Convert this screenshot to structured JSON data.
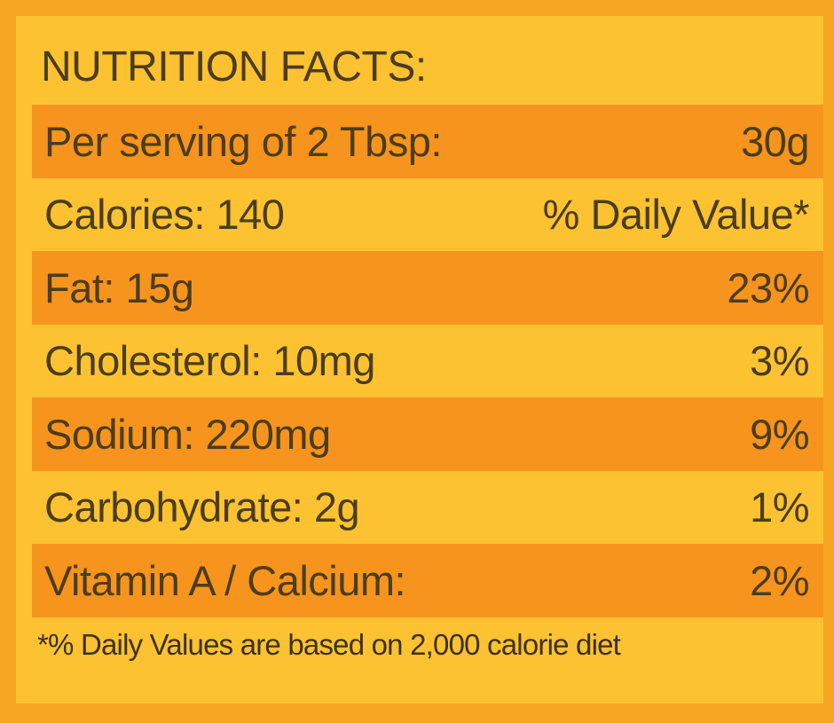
{
  "title": "NUTRITION FACTS:",
  "rows": [
    [
      "Per serving of 2 Tbsp:",
      "30g"
    ],
    [
      "Calories: 140",
      "% Daily Value*"
    ],
    [
      "Fat: 15g",
      "23%"
    ],
    [
      "Cholesterol: 10mg",
      "3%"
    ],
    [
      "Sodium: 220mg",
      "9%"
    ],
    [
      "Carbohydrate: 2g",
      "1%"
    ],
    [
      "Vitamin A / Calcium:",
      "2%"
    ]
  ],
  "footnote": "*% Daily Values are based on 2,000 calorie diet"
}
